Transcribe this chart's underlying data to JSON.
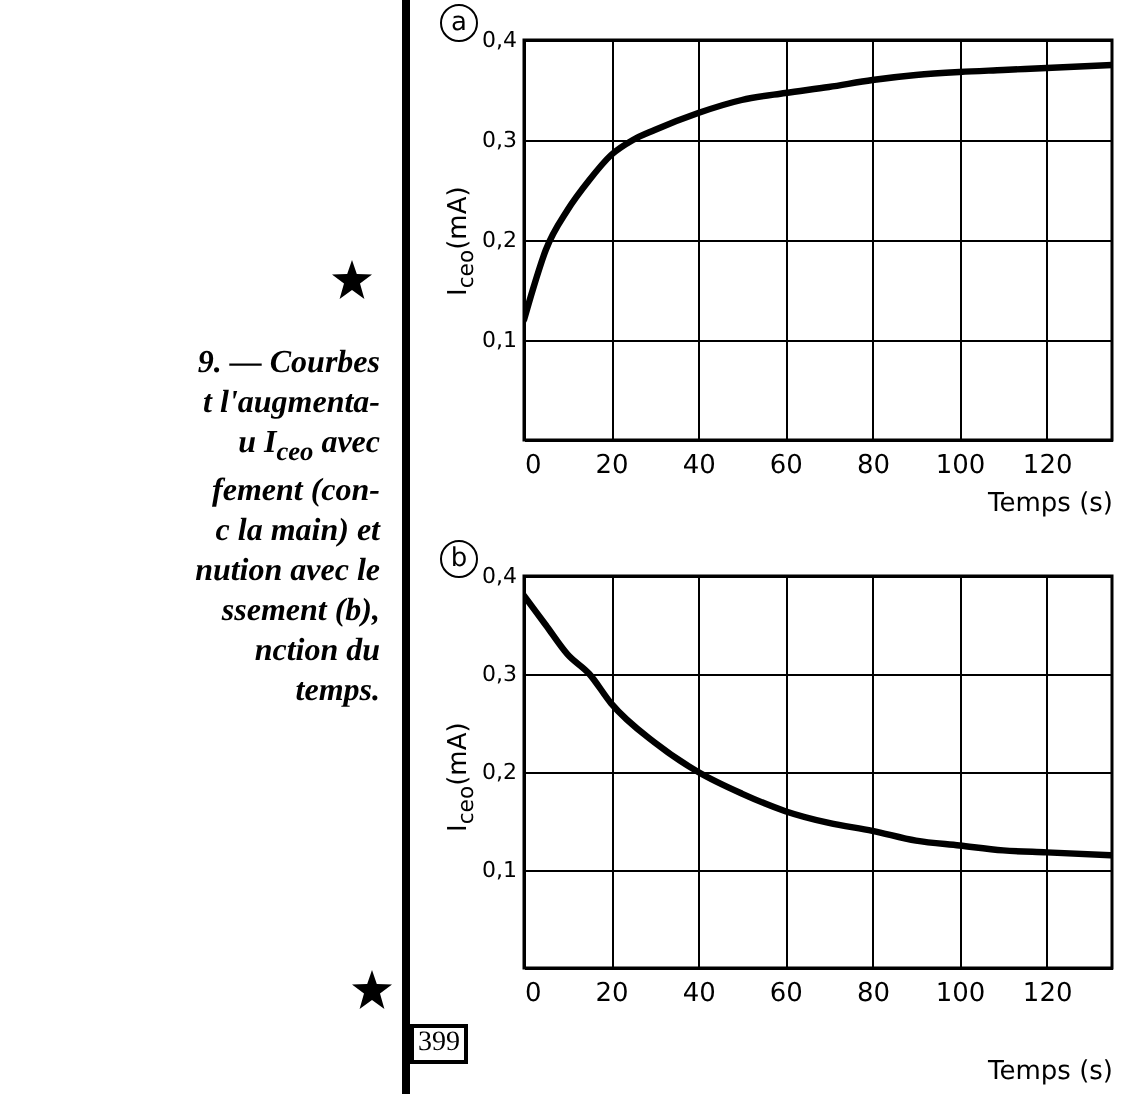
{
  "chart_data": [
    {
      "type": "line",
      "title": "a",
      "xlabel": "Temps (s)",
      "ylabel": "I$_{ceo}$(mA)",
      "x": [
        0,
        2,
        5,
        10,
        15,
        20,
        25,
        30,
        40,
        50,
        60,
        70,
        80,
        90,
        100,
        110,
        120,
        135
      ],
      "series": [
        {
          "color": "#000000",
          "values": [
            0.12,
            0.15,
            0.19,
            0.23,
            0.26,
            0.285,
            0.3,
            0.31,
            0.327,
            0.34,
            0.347,
            0.353,
            0.36,
            0.365,
            0.368,
            0.37,
            0.372,
            0.375
          ]
        }
      ],
      "xlim": [
        0,
        135
      ],
      "ylim": [
        0,
        0.4
      ],
      "xticks": [
        0,
        20,
        40,
        60,
        80,
        100,
        120
      ],
      "yticks": [
        {
          "value": 0.1,
          "label": "0,1"
        },
        {
          "value": 0.2,
          "label": "0,2"
        },
        {
          "value": 0.3,
          "label": "0,3"
        },
        {
          "value": 0.4,
          "label": "0,4"
        }
      ],
      "grid": true,
      "annotations": [
        "9. — Courbes",
        "t l'augmenta-",
        "u I$_{ceo}$ avec",
        "fement (con-",
        "c la main) et",
        "nution avec le",
        "ssement (b),",
        "nction du",
        "temps."
      ]
    },
    {
      "type": "line",
      "title": "b",
      "xlabel": "Temps (s)",
      "ylabel": "I$_{ceo}$(mA)",
      "x": [
        0,
        5,
        10,
        15,
        20,
        30,
        40,
        50,
        60,
        70,
        80,
        90,
        100,
        110,
        120,
        135
      ],
      "series": [
        {
          "color": "#000000",
          "values": [
            0.38,
            0.35,
            0.32,
            0.3,
            0.27,
            0.23,
            0.2,
            0.178,
            0.16,
            0.148,
            0.14,
            0.13,
            0.125,
            0.12,
            0.118,
            0.115
          ]
        }
      ],
      "xlim": [
        0,
        135
      ],
      "ylim": [
        0,
        0.4
      ],
      "xticks": [
        0,
        20,
        40,
        60,
        80,
        100,
        120
      ],
      "yticks": [
        {
          "value": 0.1,
          "label": "0,1"
        },
        {
          "value": 0.2,
          "label": "0,2"
        },
        {
          "value": 0.3,
          "label": "0,3"
        },
        {
          "value": 0.4,
          "label": "0,4"
        }
      ],
      "grid": true,
      "annotations": [
        "399"
      ]
    }
  ]
}
